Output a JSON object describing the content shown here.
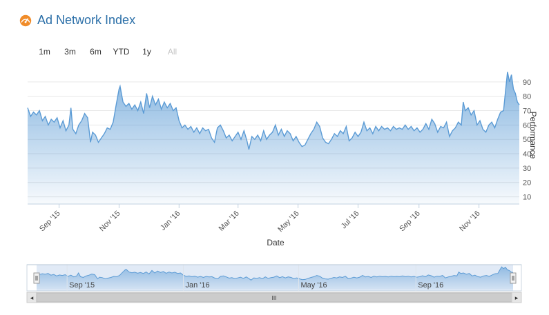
{
  "header": {
    "title": "Ad Network Index",
    "icon": "speedometer-icon",
    "icon_color": "#f08c2a"
  },
  "range_selector": [
    {
      "label": "1m",
      "enabled": true
    },
    {
      "label": "3m",
      "enabled": true
    },
    {
      "label": "6m",
      "enabled": true
    },
    {
      "label": "YTD",
      "enabled": true
    },
    {
      "label": "1y",
      "enabled": true
    },
    {
      "label": "All",
      "enabled": false
    }
  ],
  "chart_data": {
    "type": "area",
    "xlabel": "Date",
    "ylabel": "Performance",
    "ylim": [
      5,
      100
    ],
    "y_ticks": [
      10,
      20,
      30,
      40,
      50,
      60,
      70,
      80,
      90
    ],
    "x_range": [
      "2015-07-31",
      "2016-12-12"
    ],
    "x_ticks": [
      {
        "date": "2015-09-01",
        "label": "Sep '15"
      },
      {
        "date": "2015-11-01",
        "label": "Nov '15"
      },
      {
        "date": "2016-01-01",
        "label": "Jan '16"
      },
      {
        "date": "2016-03-01",
        "label": "Mar '16"
      },
      {
        "date": "2016-05-01",
        "label": "May '16"
      },
      {
        "date": "2016-07-01",
        "label": "Jul '16"
      },
      {
        "date": "2016-09-01",
        "label": "Sep '16"
      },
      {
        "date": "2016-11-01",
        "label": "Nov '16"
      }
    ],
    "series": [
      {
        "color": "#5b9bd5",
        "points": [
          [
            "2015-07-31",
            72
          ],
          [
            "2015-08-03",
            66
          ],
          [
            "2015-08-06",
            69
          ],
          [
            "2015-08-09",
            67
          ],
          [
            "2015-08-12",
            70
          ],
          [
            "2015-08-15",
            63
          ],
          [
            "2015-08-18",
            66
          ],
          [
            "2015-08-21",
            60
          ],
          [
            "2015-08-24",
            64
          ],
          [
            "2015-08-27",
            62
          ],
          [
            "2015-08-30",
            65
          ],
          [
            "2015-09-02",
            58
          ],
          [
            "2015-09-05",
            63
          ],
          [
            "2015-09-08",
            56
          ],
          [
            "2015-09-11",
            60
          ],
          [
            "2015-09-13",
            72
          ],
          [
            "2015-09-15",
            57
          ],
          [
            "2015-09-18",
            54
          ],
          [
            "2015-09-21",
            60
          ],
          [
            "2015-09-24",
            63
          ],
          [
            "2015-09-27",
            68
          ],
          [
            "2015-09-30",
            65
          ],
          [
            "2015-10-03",
            48
          ],
          [
            "2015-10-05",
            55
          ],
          [
            "2015-10-08",
            53
          ],
          [
            "2015-10-11",
            48
          ],
          [
            "2015-10-14",
            51
          ],
          [
            "2015-10-17",
            54
          ],
          [
            "2015-10-20",
            58
          ],
          [
            "2015-10-23",
            57
          ],
          [
            "2015-10-26",
            62
          ],
          [
            "2015-10-29",
            74
          ],
          [
            "2015-11-01",
            85
          ],
          [
            "2015-11-02",
            87
          ],
          [
            "2015-11-05",
            76
          ],
          [
            "2015-11-08",
            73
          ],
          [
            "2015-11-11",
            75
          ],
          [
            "2015-11-14",
            71
          ],
          [
            "2015-11-17",
            74
          ],
          [
            "2015-11-20",
            70
          ],
          [
            "2015-11-23",
            76
          ],
          [
            "2015-11-26",
            68
          ],
          [
            "2015-11-29",
            82
          ],
          [
            "2015-12-02",
            72
          ],
          [
            "2015-12-05",
            80
          ],
          [
            "2015-12-08",
            74
          ],
          [
            "2015-12-11",
            78
          ],
          [
            "2015-12-14",
            71
          ],
          [
            "2015-12-17",
            76
          ],
          [
            "2015-12-20",
            72
          ],
          [
            "2015-12-23",
            75
          ],
          [
            "2015-12-26",
            70
          ],
          [
            "2015-12-29",
            72
          ],
          [
            "2016-01-01",
            63
          ],
          [
            "2016-01-04",
            58
          ],
          [
            "2016-01-07",
            60
          ],
          [
            "2016-01-10",
            57
          ],
          [
            "2016-01-13",
            59
          ],
          [
            "2016-01-16",
            55
          ],
          [
            "2016-01-19",
            58
          ],
          [
            "2016-01-22",
            54
          ],
          [
            "2016-01-25",
            58
          ],
          [
            "2016-01-28",
            56
          ],
          [
            "2016-01-31",
            57
          ],
          [
            "2016-02-03",
            51
          ],
          [
            "2016-02-06",
            48
          ],
          [
            "2016-02-09",
            58
          ],
          [
            "2016-02-12",
            60
          ],
          [
            "2016-02-15",
            56
          ],
          [
            "2016-02-18",
            51
          ],
          [
            "2016-02-21",
            53
          ],
          [
            "2016-02-24",
            49
          ],
          [
            "2016-02-27",
            52
          ],
          [
            "2016-03-01",
            55
          ],
          [
            "2016-03-04",
            50
          ],
          [
            "2016-03-07",
            56
          ],
          [
            "2016-03-10",
            49
          ],
          [
            "2016-03-12",
            43
          ],
          [
            "2016-03-15",
            52
          ],
          [
            "2016-03-18",
            50
          ],
          [
            "2016-03-21",
            53
          ],
          [
            "2016-03-24",
            49
          ],
          [
            "2016-03-27",
            56
          ],
          [
            "2016-03-30",
            50
          ],
          [
            "2016-04-02",
            53
          ],
          [
            "2016-04-05",
            55
          ],
          [
            "2016-04-08",
            60
          ],
          [
            "2016-04-11",
            53
          ],
          [
            "2016-04-14",
            57
          ],
          [
            "2016-04-17",
            52
          ],
          [
            "2016-04-20",
            56
          ],
          [
            "2016-04-23",
            54
          ],
          [
            "2016-04-26",
            49
          ],
          [
            "2016-04-29",
            52
          ],
          [
            "2016-05-02",
            48
          ],
          [
            "2016-05-05",
            45
          ],
          [
            "2016-05-08",
            46
          ],
          [
            "2016-05-11",
            50
          ],
          [
            "2016-05-14",
            54
          ],
          [
            "2016-05-17",
            57
          ],
          [
            "2016-05-20",
            62
          ],
          [
            "2016-05-23",
            59
          ],
          [
            "2016-05-26",
            51
          ],
          [
            "2016-05-29",
            48
          ],
          [
            "2016-06-01",
            47
          ],
          [
            "2016-06-04",
            50
          ],
          [
            "2016-06-07",
            54
          ],
          [
            "2016-06-10",
            52
          ],
          [
            "2016-06-13",
            56
          ],
          [
            "2016-06-16",
            54
          ],
          [
            "2016-06-19",
            59
          ],
          [
            "2016-06-22",
            49
          ],
          [
            "2016-06-25",
            51
          ],
          [
            "2016-06-28",
            55
          ],
          [
            "2016-07-01",
            52
          ],
          [
            "2016-07-04",
            55
          ],
          [
            "2016-07-07",
            62
          ],
          [
            "2016-07-10",
            56
          ],
          [
            "2016-07-13",
            58
          ],
          [
            "2016-07-16",
            54
          ],
          [
            "2016-07-19",
            59
          ],
          [
            "2016-07-22",
            56
          ],
          [
            "2016-07-25",
            59
          ],
          [
            "2016-07-28",
            57
          ],
          [
            "2016-07-31",
            58
          ],
          [
            "2016-08-03",
            56
          ],
          [
            "2016-08-06",
            59
          ],
          [
            "2016-08-09",
            57
          ],
          [
            "2016-08-12",
            58
          ],
          [
            "2016-08-15",
            57
          ],
          [
            "2016-08-18",
            60
          ],
          [
            "2016-08-21",
            57
          ],
          [
            "2016-08-24",
            59
          ],
          [
            "2016-08-27",
            56
          ],
          [
            "2016-08-30",
            58
          ],
          [
            "2016-09-02",
            55
          ],
          [
            "2016-09-05",
            57
          ],
          [
            "2016-09-08",
            61
          ],
          [
            "2016-09-11",
            57
          ],
          [
            "2016-09-14",
            64
          ],
          [
            "2016-09-17",
            61
          ],
          [
            "2016-09-20",
            55
          ],
          [
            "2016-09-23",
            59
          ],
          [
            "2016-09-26",
            58
          ],
          [
            "2016-09-29",
            62
          ],
          [
            "2016-10-02",
            52
          ],
          [
            "2016-10-05",
            56
          ],
          [
            "2016-10-08",
            58
          ],
          [
            "2016-10-11",
            62
          ],
          [
            "2016-10-14",
            60
          ],
          [
            "2016-10-16",
            76
          ],
          [
            "2016-10-18",
            70
          ],
          [
            "2016-10-21",
            72
          ],
          [
            "2016-10-24",
            67
          ],
          [
            "2016-10-27",
            70
          ],
          [
            "2016-10-30",
            60
          ],
          [
            "2016-11-02",
            63
          ],
          [
            "2016-11-05",
            57
          ],
          [
            "2016-11-08",
            55
          ],
          [
            "2016-11-11",
            60
          ],
          [
            "2016-11-14",
            62
          ],
          [
            "2016-11-17",
            58
          ],
          [
            "2016-11-20",
            64
          ],
          [
            "2016-11-23",
            69
          ],
          [
            "2016-11-26",
            70
          ],
          [
            "2016-11-28",
            84
          ],
          [
            "2016-11-30",
            97
          ],
          [
            "2016-12-02",
            90
          ],
          [
            "2016-12-04",
            95
          ],
          [
            "2016-12-06",
            85
          ],
          [
            "2016-12-08",
            82
          ],
          [
            "2016-12-10",
            76
          ],
          [
            "2016-12-12",
            74
          ]
        ]
      }
    ]
  },
  "navigator": {
    "x_ticks": [
      {
        "date": "2015-09-01",
        "label": "Sep '15"
      },
      {
        "date": "2016-01-01",
        "label": "Jan '16"
      },
      {
        "date": "2016-05-01",
        "label": "May '16"
      },
      {
        "date": "2016-09-01",
        "label": "Sep '16"
      }
    ],
    "scrollbar_left_glyph": "◂",
    "scrollbar_right_glyph": "▸",
    "scrollbar_grip": "III"
  }
}
